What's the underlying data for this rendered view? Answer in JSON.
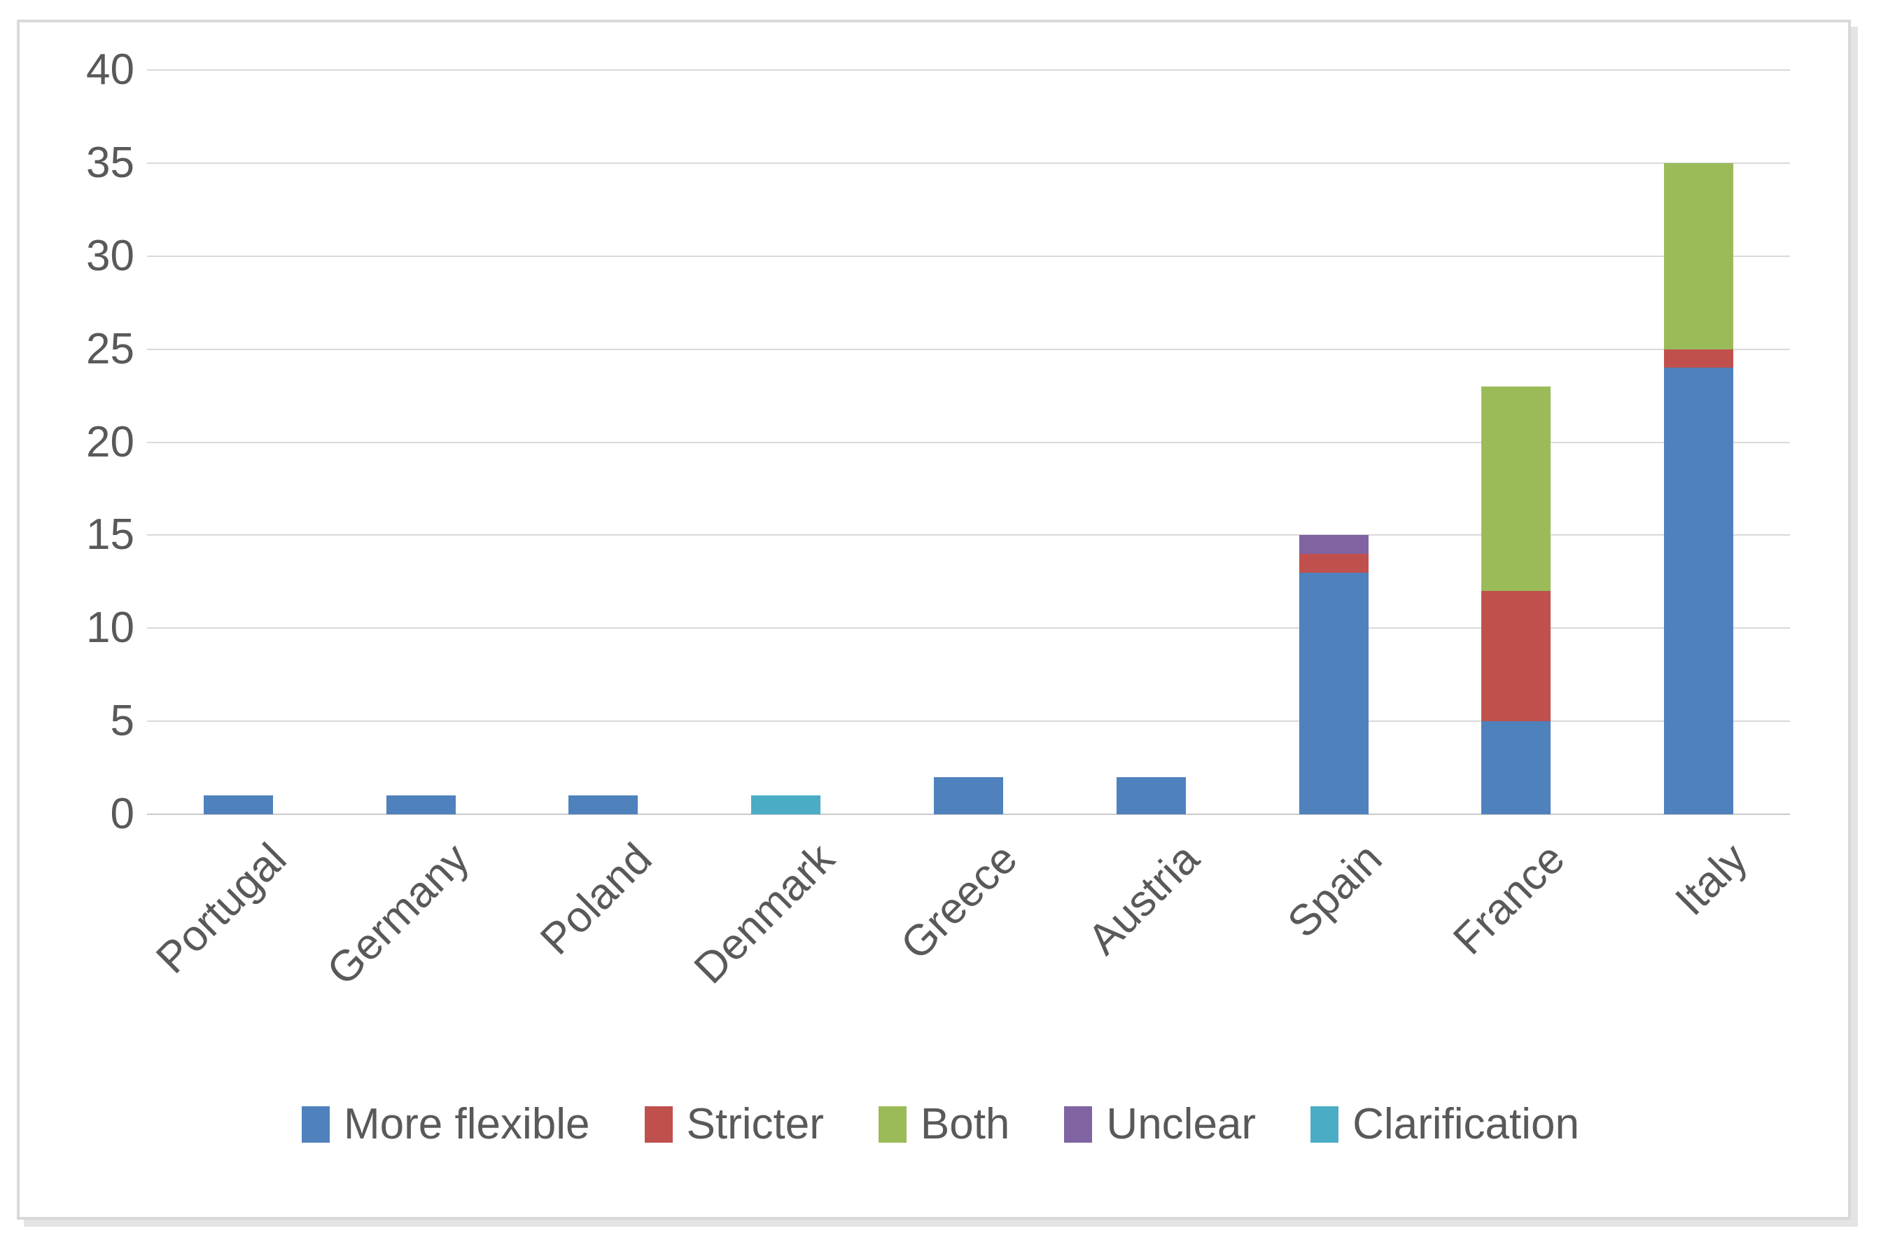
{
  "chart_data": {
    "type": "bar",
    "stacked": true,
    "title": "",
    "xlabel": "",
    "ylabel": "",
    "categories": [
      "Portugal",
      "Germany",
      "Poland",
      "Denmark",
      "Greece",
      "Austria",
      "Spain",
      "France",
      "Italy"
    ],
    "series": [
      {
        "name": "More flexible",
        "color": "#4f81bd",
        "values": [
          1,
          1,
          1,
          0,
          2,
          2,
          13,
          5,
          24
        ]
      },
      {
        "name": "Stricter",
        "color": "#c0504d",
        "values": [
          0,
          0,
          0,
          0,
          0,
          0,
          1,
          7,
          1
        ]
      },
      {
        "name": "Both",
        "color": "#9bbb59",
        "values": [
          0,
          0,
          0,
          0,
          0,
          0,
          0,
          11,
          10
        ]
      },
      {
        "name": "Unclear",
        "color": "#8064a2",
        "values": [
          0,
          0,
          0,
          0,
          0,
          0,
          1,
          0,
          0
        ]
      },
      {
        "name": "Clarification",
        "color": "#4bacc6",
        "values": [
          0,
          0,
          0,
          1,
          0,
          0,
          0,
          0,
          0
        ]
      }
    ],
    "totals": [
      1,
      1,
      1,
      1,
      2,
      2,
      15,
      23,
      35
    ],
    "ylim": [
      0,
      40
    ],
    "yticks": [
      0,
      5,
      10,
      15,
      20,
      25,
      30,
      35,
      40
    ],
    "grid": true,
    "gridlines": "horizontal",
    "legend_position": "bottom",
    "x_tick_rotation_deg": 45
  },
  "style": {
    "background": "#ffffff",
    "frame_border_color": "#d9d9d9",
    "grid_color": "#d9d9d9",
    "baseline_color": "#c9c9c9",
    "axis_text_color": "#595959"
  }
}
